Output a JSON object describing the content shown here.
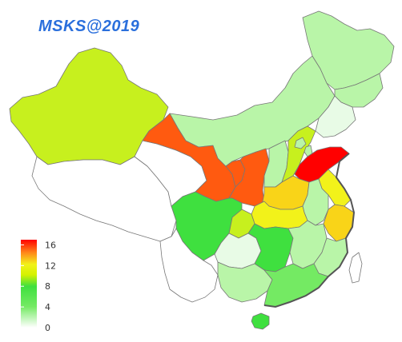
{
  "title": "MSKS@2019",
  "legend": {
    "ticks": [
      "0",
      "4",
      "8",
      "12",
      "16"
    ],
    "scale": {
      "min": 0,
      "max": 17
    }
  },
  "colors": {
    "white": "#ffffff",
    "pale": "#e8fbe6",
    "light_green": "#b9f5a8",
    "green": "#74ea63",
    "bright_green": "#3fe03f",
    "yellow_green": "#c7f01e",
    "yellow": "#f2f21a",
    "yellow_orange": "#f9d418",
    "orange": "#ffa72a",
    "red_orange": "#ff5a10",
    "red": "#ff0000"
  },
  "regions": [
    {
      "name": "xinjiang",
      "color": "yellow_green"
    },
    {
      "name": "tibet",
      "color": "white"
    },
    {
      "name": "qinghai",
      "color": "white"
    },
    {
      "name": "gansu",
      "color": "red_orange"
    },
    {
      "name": "inner-mongolia",
      "color": "light_green"
    },
    {
      "name": "heilongjiang",
      "color": "light_green"
    },
    {
      "name": "jilin",
      "color": "light_green"
    },
    {
      "name": "liaoning",
      "color": "pale"
    },
    {
      "name": "ningxia",
      "color": "red_orange"
    },
    {
      "name": "shaanxi",
      "color": "red_orange"
    },
    {
      "name": "shanxi",
      "color": "light_green"
    },
    {
      "name": "hebei",
      "color": "yellow_green"
    },
    {
      "name": "beijing",
      "color": "light_green"
    },
    {
      "name": "tianjin",
      "color": "light_green"
    },
    {
      "name": "shandong",
      "color": "red"
    },
    {
      "name": "henan",
      "color": "yellow_orange"
    },
    {
      "name": "jiangsu",
      "color": "yellow"
    },
    {
      "name": "anhui",
      "color": "light_green"
    },
    {
      "name": "zhejiang",
      "color": "yellow_orange"
    },
    {
      "name": "hubei",
      "color": "yellow"
    },
    {
      "name": "chongqing",
      "color": "yellow_green"
    },
    {
      "name": "sichuan",
      "color": "bright_green"
    },
    {
      "name": "yunnan",
      "color": "white"
    },
    {
      "name": "guizhou",
      "color": "pale"
    },
    {
      "name": "hunan",
      "color": "bright_green"
    },
    {
      "name": "jiangxi",
      "color": "light_green"
    },
    {
      "name": "fujian",
      "color": "light_green"
    },
    {
      "name": "guangxi",
      "color": "light_green"
    },
    {
      "name": "guangdong",
      "color": "green"
    },
    {
      "name": "hainan",
      "color": "bright_green"
    },
    {
      "name": "taiwan",
      "color": "white"
    }
  ]
}
